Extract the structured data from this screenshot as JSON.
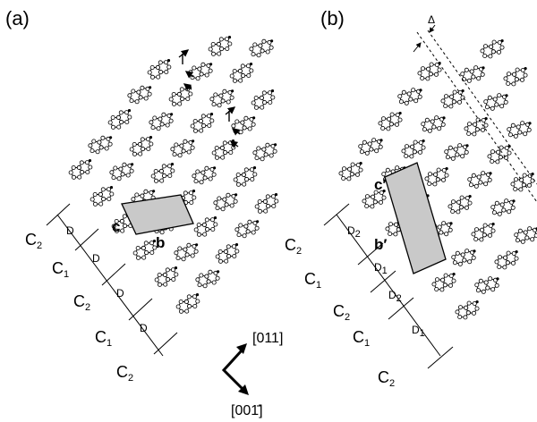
{
  "panels": [
    {
      "id": "a",
      "label": "(a)",
      "chain_labels": [
        {
          "letter": "C",
          "sub": "2"
        },
        {
          "letter": "C",
          "sub": "1"
        },
        {
          "letter": "C",
          "sub": "2"
        },
        {
          "letter": "C",
          "sub": "1"
        },
        {
          "letter": "C",
          "sub": "2"
        }
      ],
      "spacing_labels": [
        {
          "letter": "D",
          "sub": ""
        },
        {
          "letter": "D",
          "sub": ""
        },
        {
          "letter": "D",
          "sub": ""
        },
        {
          "letter": "D",
          "sub": ""
        }
      ],
      "axis_labels": {
        "c": "c",
        "b": "b"
      }
    },
    {
      "id": "b",
      "label": "(b)",
      "chain_labels": [
        {
          "letter": "C",
          "sub": "2"
        },
        {
          "letter": "C",
          "sub": "1"
        },
        {
          "letter": "C",
          "sub": "2"
        },
        {
          "letter": "C",
          "sub": "1"
        },
        {
          "letter": "C",
          "sub": "2"
        }
      ],
      "spacing_labels": [
        {
          "letter": "D",
          "sub": "2"
        },
        {
          "letter": "D",
          "sub": "1"
        },
        {
          "letter": "D",
          "sub": "2"
        },
        {
          "letter": "D",
          "sub": "1"
        }
      ],
      "axis_labels": {
        "c": "c′",
        "b": "b′"
      },
      "shift_label": "Δ"
    }
  ],
  "directions": {
    "up": "[011]",
    "down": "[001̄]"
  },
  "colors": {
    "ink": "#000000",
    "cell_fill": "#c9c9c9"
  }
}
